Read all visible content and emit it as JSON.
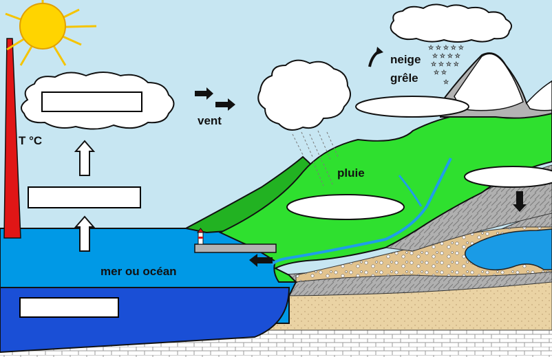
{
  "labels": {
    "temperature": "T °C",
    "wind": "vent",
    "snow": "neige",
    "hail": "grêle",
    "rain": "pluie",
    "sea": "mer ou océan"
  },
  "blank_label_boxes": 3,
  "blank_label_ovals": 3,
  "icons": [
    "sun-icon",
    "thermometer-icon",
    "arrow-up-icon",
    "arrow-right-icon",
    "arrow-left-icon",
    "arrow-down-icon",
    "curved-arrow-icon",
    "snowflake-icon",
    "lighthouse-icon"
  ],
  "colors": {
    "sky": "#c7e6f2",
    "sun": "#ffd400",
    "sea": "#0099e6",
    "deep_sea": "#1a4fd6",
    "grass_light": "#2fe02f",
    "grass_dark": "#22b222",
    "mountain": "#b3b3b3",
    "snow": "#ffffff",
    "sand": "#e6c89a",
    "thermometer": "#e01616"
  }
}
